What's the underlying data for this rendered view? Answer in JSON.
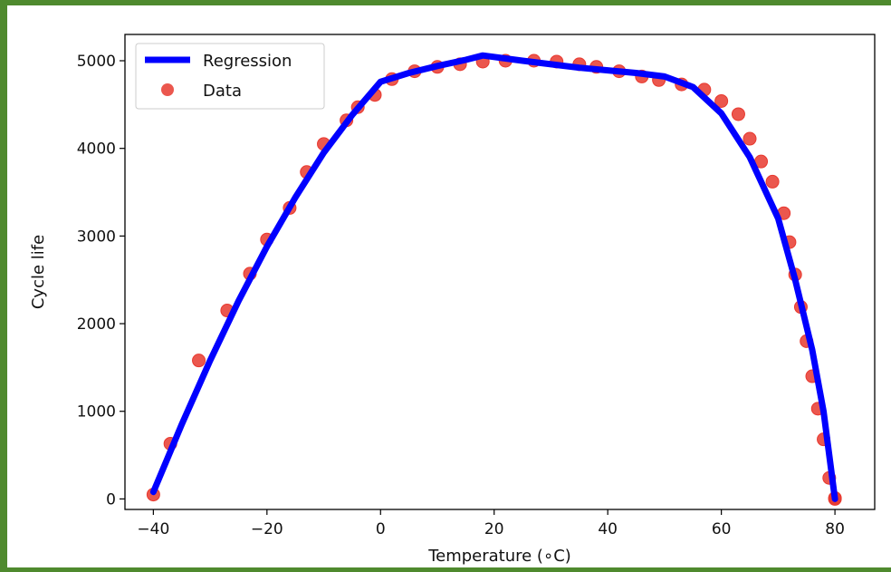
{
  "chart_data": {
    "type": "scatter",
    "xlabel": "Temperature (∘C)",
    "ylabel": "Cycle life",
    "xlim": [
      -45,
      87
    ],
    "ylim": [
      -120,
      5300
    ],
    "xticks": [
      -40,
      -20,
      0,
      20,
      40,
      60,
      80
    ],
    "yticks": [
      0,
      1000,
      2000,
      3000,
      4000,
      5000
    ],
    "xtick_labels": [
      "−40",
      "−20",
      "0",
      "20",
      "40",
      "60",
      "80"
    ],
    "ytick_labels": [
      "0",
      "1000",
      "2000",
      "3000",
      "4000",
      "5000"
    ],
    "grid": false,
    "legend_position": "top-left",
    "series": [
      {
        "name": "Regression",
        "kind": "line",
        "color": "#0000ff",
        "x": [
          -40,
          -35,
          -30,
          -25,
          -20,
          -15,
          -10,
          -5,
          0,
          5,
          10,
          15,
          18,
          25,
          30,
          35,
          40,
          45,
          50,
          55,
          60,
          65,
          70,
          73,
          76,
          78,
          80
        ],
        "y": [
          80,
          850,
          1580,
          2260,
          2880,
          3440,
          3950,
          4380,
          4760,
          4860,
          4940,
          5010,
          5060,
          5000,
          4960,
          4920,
          4890,
          4860,
          4820,
          4700,
          4400,
          3900,
          3200,
          2500,
          1700,
          1000,
          0
        ]
      },
      {
        "name": "Data",
        "kind": "scatter",
        "color": "#e8392f",
        "x": [
          -40,
          -37,
          -32,
          -27,
          -23,
          -20,
          -16,
          -13,
          -10,
          -6,
          -4,
          -1,
          2,
          6,
          10,
          14,
          18,
          22,
          27,
          31,
          35,
          38,
          42,
          46,
          49,
          53,
          57,
          60,
          63,
          65,
          67,
          69,
          71,
          72,
          73,
          74,
          75,
          76,
          77,
          78,
          79,
          80,
          80
        ],
        "y": [
          50,
          630,
          1580,
          2150,
          2570,
          2960,
          3320,
          3730,
          4050,
          4320,
          4470,
          4610,
          4790,
          4880,
          4930,
          4960,
          4990,
          5000,
          5000,
          4990,
          4960,
          4930,
          4880,
          4820,
          4780,
          4730,
          4670,
          4540,
          4390,
          4110,
          3850,
          3620,
          3260,
          2930,
          2560,
          2190,
          1800,
          1400,
          1030,
          680,
          240,
          10,
          0
        ]
      }
    ]
  }
}
